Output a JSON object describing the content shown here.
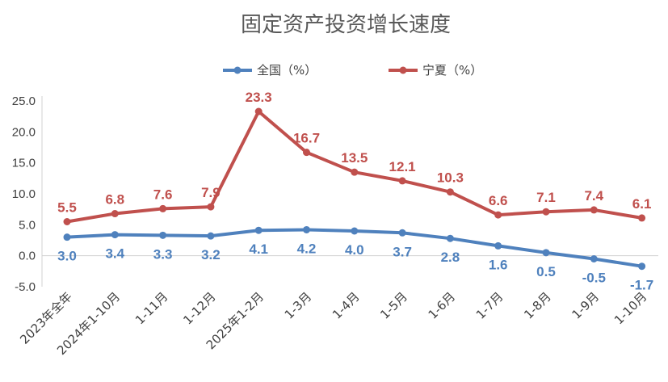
{
  "chart_data": {
    "type": "line",
    "title": "固定资产投资增长速度",
    "categories": [
      "2023年全年",
      "2024年1-10月",
      "1-11月",
      "1-12月",
      "2025年1-2月",
      "1-3月",
      "1-4月",
      "1-5月",
      "1-6月",
      "1-7月",
      "1-8月",
      "1-9月",
      "1-10月"
    ],
    "series": [
      {
        "name": "全国（%）",
        "color": "#4f81bd",
        "values": [
          3.0,
          3.4,
          3.3,
          3.2,
          4.1,
          4.2,
          4.0,
          3.7,
          2.8,
          1.6,
          0.5,
          -0.5,
          -1.7
        ],
        "labels": [
          "3.0",
          "3.4",
          "3.3",
          "3.2",
          "4.1",
          "4.2",
          "4.0",
          "3.7",
          "2.8",
          "1.6",
          "0.5",
          "-0.5",
          "-1.7"
        ]
      },
      {
        "name": "宁夏（%）",
        "color": "#c0504d",
        "values": [
          5.5,
          6.8,
          7.6,
          7.9,
          23.3,
          16.7,
          13.5,
          12.1,
          10.3,
          6.6,
          7.1,
          7.4,
          6.1
        ],
        "labels": [
          "5.5",
          "6.8",
          "7.6",
          "7.9",
          "23.3",
          "16.7",
          "13.5",
          "12.1",
          "10.3",
          "6.6",
          "7.1",
          "7.4",
          "6.1"
        ]
      }
    ],
    "ylim": [
      -5,
      25
    ],
    "yticks": [
      "25.0",
      "20.0",
      "15.0",
      "10.0",
      "5.0",
      "0.0",
      "-5.0"
    ],
    "ytick_values": [
      25,
      20,
      15,
      10,
      5,
      0,
      -5
    ],
    "grid": false,
    "legend_position": "top"
  }
}
